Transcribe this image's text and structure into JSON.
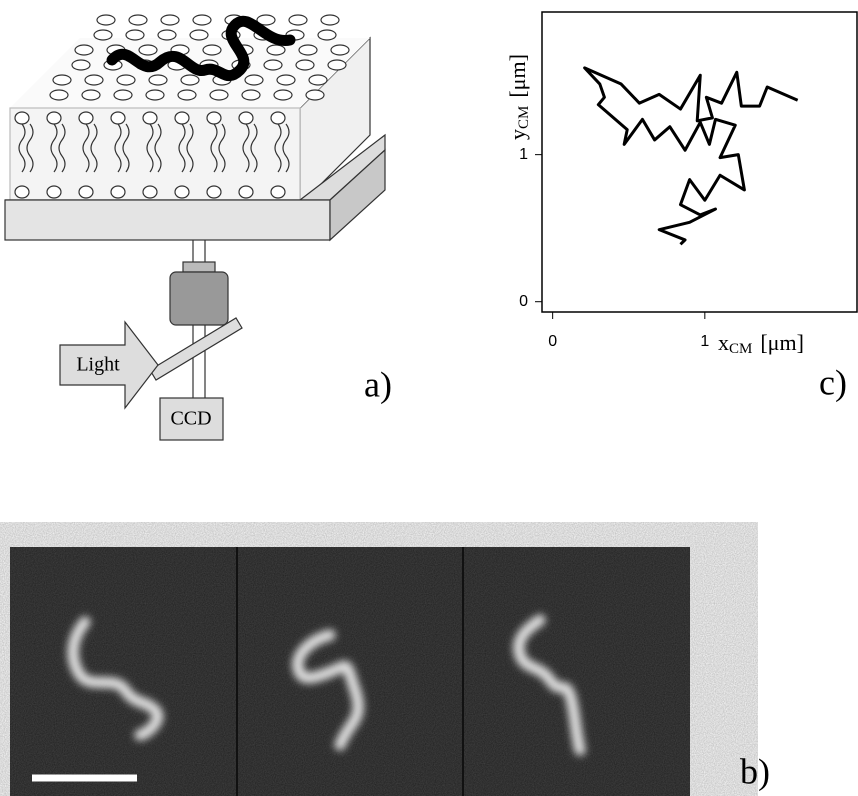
{
  "diagram": {
    "light_label": "Light",
    "detector_label": "CCD",
    "panel_label": "a)"
  },
  "micrograph": {
    "panel_label": "b)"
  },
  "chart_data": {
    "type": "line",
    "panel_label": "c)",
    "xlabel": {
      "symbol": "x",
      "subscript": "CM",
      "unit": "[μm]"
    },
    "ylabel": {
      "symbol": "y",
      "subscript": "CM",
      "unit": "[μm]"
    },
    "xlim": [
      -0.07,
      2.0
    ],
    "ylim": [
      -0.07,
      1.97
    ],
    "xticks": [
      0,
      1
    ],
    "yticks": [
      0,
      1
    ],
    "color": "#000000",
    "x": [
      1.61,
      1.41,
      1.36,
      1.24,
      1.21,
      1.11,
      1.01,
      1.05,
      0.95,
      0.97,
      0.84,
      0.7,
      0.57,
      0.45,
      0.21,
      0.31,
      0.34,
      0.3,
      0.49,
      0.47,
      0.59,
      0.67,
      0.77,
      0.87,
      0.97,
      1.03,
      1.07,
      1.2,
      1.1,
      1.22,
      1.26,
      1.1,
      1.0,
      0.9,
      0.84,
      0.97,
      1.07,
      0.9,
      0.7,
      0.87,
      0.84
    ],
    "y": [
      1.37,
      1.46,
      1.33,
      1.33,
      1.56,
      1.35,
      1.39,
      1.25,
      1.23,
      1.54,
      1.31,
      1.41,
      1.35,
      1.48,
      1.59,
      1.48,
      1.39,
      1.34,
      1.17,
      1.07,
      1.24,
      1.1,
      1.19,
      1.03,
      1.22,
      1.07,
      1.24,
      1.2,
      0.98,
      1.0,
      0.76,
      0.86,
      0.69,
      0.83,
      0.66,
      0.59,
      0.63,
      0.54,
      0.49,
      0.42,
      0.39
    ]
  }
}
